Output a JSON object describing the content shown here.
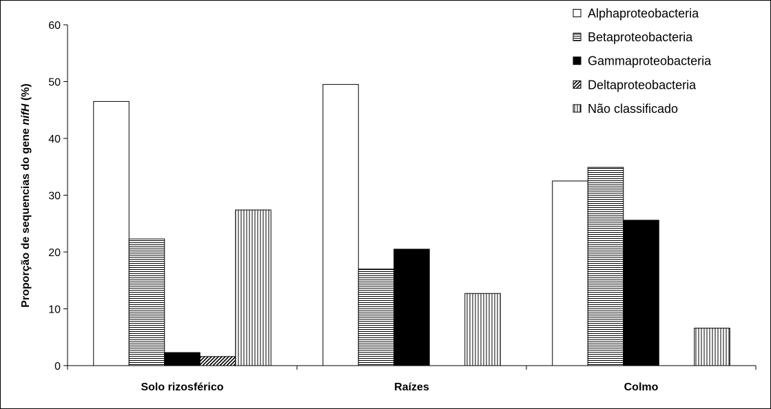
{
  "chart_data": {
    "type": "bar",
    "categories": [
      "Solo rizosférico",
      "Raízes",
      "Colmo"
    ],
    "series": [
      {
        "name": "Alphaproteobacteria",
        "values": [
          46.5,
          49.5,
          32.5
        ],
        "pattern": "white"
      },
      {
        "name": "Betaproteobacteria",
        "values": [
          22.3,
          17.0,
          34.9
        ],
        "pattern": "horizontal"
      },
      {
        "name": "Gammaproteobacteria",
        "values": [
          2.3,
          20.5,
          25.6
        ],
        "pattern": "solid"
      },
      {
        "name": "Deltaproteobacteria",
        "values": [
          1.6,
          0,
          0
        ],
        "pattern": "diagonal"
      },
      {
        "name": "Não classificado",
        "values": [
          27.4,
          12.7,
          6.6
        ],
        "pattern": "vertical"
      }
    ],
    "ylabel_parts": [
      "Proporção de sequencias do gene ",
      "nifH",
      " (%)"
    ],
    "xlabel": "",
    "ylim": [
      0,
      60
    ],
    "yticks": [
      0,
      10,
      20,
      30,
      40,
      50,
      60
    ],
    "grid": false,
    "legend": "top-right"
  }
}
